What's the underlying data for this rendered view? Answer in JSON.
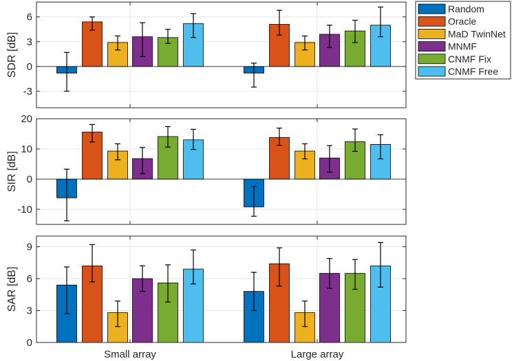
{
  "chart_data": [
    {
      "type": "bar",
      "ylabel": "SDR [dB]",
      "ylim": [
        -5,
        7.8
      ],
      "yticks": [
        -3,
        0,
        3,
        6
      ],
      "ytick_labels": [
        "-3",
        "0",
        "3",
        "6"
      ],
      "grid": true,
      "categories": [
        "Small array",
        "Large array"
      ],
      "series": [
        {
          "name": "Random",
          "values": [
            -0.8,
            -0.8
          ],
          "err_low": [
            -3.0,
            -2.5
          ],
          "err_high": [
            1.7,
            0.4
          ]
        },
        {
          "name": "Oracle",
          "values": [
            5.4,
            5.1
          ],
          "err_low": [
            4.4,
            3.8
          ],
          "err_high": [
            6.0,
            6.8
          ]
        },
        {
          "name": "MaD TwinNet",
          "values": [
            2.9,
            2.9
          ],
          "err_low": [
            2.0,
            2.0
          ],
          "err_high": [
            3.7,
            3.7
          ]
        },
        {
          "name": "MNMF",
          "values": [
            3.6,
            3.9
          ],
          "err_low": [
            1.2,
            2.3
          ],
          "err_high": [
            5.3,
            5.0
          ]
        },
        {
          "name": "CNMF Fix",
          "values": [
            3.5,
            4.3
          ],
          "err_low": [
            2.8,
            2.9
          ],
          "err_high": [
            4.5,
            5.6
          ]
        },
        {
          "name": "CNMF Free",
          "values": [
            5.2,
            5.0
          ],
          "err_low": [
            3.5,
            3.6
          ],
          "err_high": [
            6.4,
            7.2
          ]
        }
      ]
    },
    {
      "type": "bar",
      "ylabel": "SIR [dB]",
      "ylim": [
        -15,
        20
      ],
      "yticks": [
        -10,
        0,
        10,
        20
      ],
      "ytick_labels": [
        "-10",
        "0",
        "10",
        "20"
      ],
      "grid": true,
      "categories": [
        "Small array",
        "Large array"
      ],
      "series": [
        {
          "name": "Random",
          "values": [
            -6.2,
            -9.2
          ],
          "err_low": [
            -13.8,
            -12.3
          ],
          "err_high": [
            3.3,
            -2.4
          ]
        },
        {
          "name": "Oracle",
          "values": [
            15.6,
            13.8
          ],
          "err_low": [
            12.3,
            11.2
          ],
          "err_high": [
            18.1,
            16.9
          ]
        },
        {
          "name": "MaD TwinNet",
          "values": [
            9.3,
            9.3
          ],
          "err_low": [
            6.4,
            6.7
          ],
          "err_high": [
            11.7,
            11.7
          ]
        },
        {
          "name": "MNMF",
          "values": [
            6.8,
            7.0
          ],
          "err_low": [
            1.8,
            2.3
          ],
          "err_high": [
            10.5,
            11.1
          ]
        },
        {
          "name": "CNMF Fix",
          "values": [
            14.1,
            12.4
          ],
          "err_low": [
            10.6,
            9.2
          ],
          "err_high": [
            17.4,
            16.6
          ]
        },
        {
          "name": "CNMF Free",
          "values": [
            13.0,
            11.5
          ],
          "err_low": [
            9.8,
            6.7
          ],
          "err_high": [
            16.5,
            14.7
          ]
        }
      ]
    },
    {
      "type": "bar",
      "ylabel": "SAR [dB]",
      "xlabel": "",
      "ylim": [
        0,
        10
      ],
      "yticks": [
        0,
        3,
        6,
        9
      ],
      "ytick_labels": [
        "0",
        "3",
        "6",
        "9"
      ],
      "grid": true,
      "categories": [
        "Small array",
        "Large array"
      ],
      "series": [
        {
          "name": "Random",
          "values": [
            5.4,
            4.8
          ],
          "err_low": [
            2.7,
            3.0
          ],
          "err_high": [
            7.1,
            6.6
          ]
        },
        {
          "name": "Oracle",
          "values": [
            7.2,
            7.4
          ],
          "err_low": [
            5.7,
            5.3
          ],
          "err_high": [
            9.2,
            8.9
          ]
        },
        {
          "name": "MaD TwinNet",
          "values": [
            2.8,
            2.8
          ],
          "err_low": [
            1.5,
            1.5
          ],
          "err_high": [
            3.9,
            3.9
          ]
        },
        {
          "name": "MNMF",
          "values": [
            6.0,
            6.5
          ],
          "err_low": [
            4.8,
            5.1
          ],
          "err_high": [
            7.2,
            7.9
          ]
        },
        {
          "name": "CNMF Fix",
          "values": [
            5.6,
            6.5
          ],
          "err_low": [
            3.8,
            5.0
          ],
          "err_high": [
            7.3,
            7.8
          ]
        },
        {
          "name": "CNMF Free",
          "values": [
            6.9,
            7.2
          ],
          "err_low": [
            5.5,
            5.2
          ],
          "err_high": [
            8.7,
            9.4
          ]
        }
      ]
    }
  ],
  "legend": {
    "placement": "top-right, outside plot area",
    "entries": [
      "Random",
      "Oracle",
      "MaD TwinNet",
      "MNMF",
      "CNMF Fix",
      "CNMF Free"
    ]
  },
  "colors": {
    "Random": "#0072BD",
    "Oracle": "#D95319",
    "MaD TwinNet": "#EDB120",
    "MNMF": "#7E2F8E",
    "CNMF Fix": "#77AC30",
    "CNMF Free": "#4DBEEE"
  }
}
